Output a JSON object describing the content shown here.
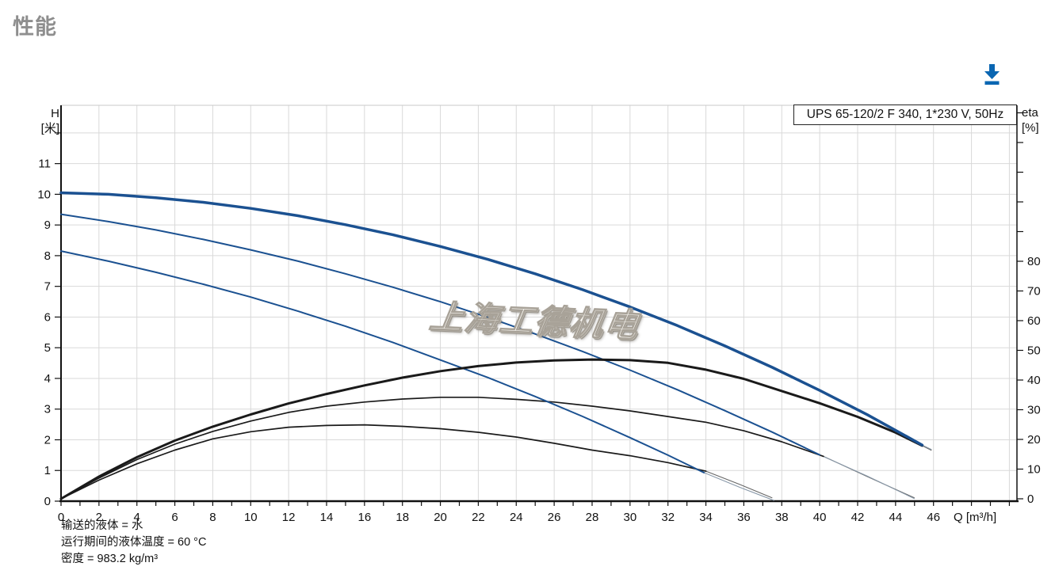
{
  "page_title": "性能",
  "toolbar": {
    "download_label": "下载",
    "download_icon_color": "#0a66b2"
  },
  "chart_data": {
    "type": "line",
    "model_label": "UPS 65-120/2 F 340, 1*230 V, 50Hz",
    "watermark": "上海工德机电",
    "notes": [
      "输送的液体 = 水",
      "运行期间的液体温度 = 60 °C",
      "密度 = 983.2 kg/m³"
    ],
    "x_axis": {
      "label": "Q [m³/h]",
      "min": 0,
      "max": 50.4,
      "minor_tick_step": 1,
      "labeled_ticks": [
        0,
        2,
        4,
        6,
        8,
        10,
        12,
        14,
        16,
        18,
        20,
        22,
        24,
        26,
        28,
        30,
        32,
        34,
        36,
        38,
        40,
        42,
        44,
        46
      ]
    },
    "y_left_axis": {
      "label_lines": [
        "H",
        "[米]"
      ],
      "min": 0,
      "max": 12.9,
      "tick_step": 1,
      "labeled_ticks": [
        0,
        1,
        2,
        3,
        4,
        5,
        6,
        7,
        8,
        9,
        10,
        11
      ]
    },
    "y_right_axis": {
      "label_lines": [
        "eta",
        "[%]"
      ],
      "min": 0,
      "max": 133,
      "tick_step": 10,
      "labeled_ticks": [
        0,
        10,
        20,
        30,
        40,
        50,
        60,
        70,
        80
      ]
    },
    "colors": {
      "curve_blue": "#1b5191",
      "curve_black": "#1a1a1a",
      "grid": "#d9d9d9",
      "axis": "#111111",
      "tail_blue": "#8898a8",
      "tail_black": "#666666"
    },
    "series": [
      {
        "name": "eta-speed1",
        "axis": "eta",
        "color": "curve_black",
        "width": 1.7,
        "points": [
          [
            0,
            0
          ],
          [
            2,
            6.3
          ],
          [
            4,
            11.8
          ],
          [
            6,
            16.4
          ],
          [
            8,
            20.2
          ],
          [
            10,
            22.6
          ],
          [
            12,
            24.1
          ],
          [
            14,
            24.7
          ],
          [
            16,
            24.9
          ],
          [
            18,
            24.4
          ],
          [
            20,
            23.6
          ],
          [
            22,
            22.4
          ],
          [
            24,
            20.8
          ],
          [
            26,
            18.7
          ],
          [
            28,
            16.4
          ],
          [
            30,
            14.5
          ],
          [
            32,
            12.2
          ],
          [
            34,
            9.3
          ]
        ],
        "tail": [
          [
            34,
            9.3
          ],
          [
            35.8,
            4.8
          ],
          [
            37.5,
            0.3
          ]
        ]
      },
      {
        "name": "eta-speed2",
        "axis": "eta",
        "color": "curve_black",
        "width": 1.7,
        "points": [
          [
            0,
            0
          ],
          [
            2,
            7
          ],
          [
            4,
            13.2
          ],
          [
            6,
            18.4
          ],
          [
            8,
            22.7
          ],
          [
            10,
            26.2
          ],
          [
            12,
            29.1
          ],
          [
            14,
            31.2
          ],
          [
            16,
            32.6
          ],
          [
            18,
            33.6
          ],
          [
            20,
            34.2
          ],
          [
            22,
            34.2
          ],
          [
            24,
            33.5
          ],
          [
            26,
            32.6
          ],
          [
            28,
            31.2
          ],
          [
            30,
            29.6
          ],
          [
            32,
            27.7
          ],
          [
            34,
            25.8
          ],
          [
            36,
            22.9
          ],
          [
            38,
            19.2
          ],
          [
            40.2,
            14.3
          ]
        ],
        "tail": [
          [
            40.2,
            14.3
          ],
          [
            42.5,
            7.5
          ],
          [
            45,
            0.3
          ]
        ]
      },
      {
        "name": "hq-speed1",
        "axis": "H",
        "color": "curve_blue",
        "width": 2,
        "points": [
          [
            0,
            8.15
          ],
          [
            2.5,
            7.82
          ],
          [
            5,
            7.46
          ],
          [
            7.5,
            7.07
          ],
          [
            10,
            6.65
          ],
          [
            12.5,
            6.19
          ],
          [
            15,
            5.7
          ],
          [
            17.5,
            5.17
          ],
          [
            20,
            4.6
          ],
          [
            22.5,
            4.03
          ],
          [
            25,
            3.41
          ],
          [
            27.5,
            2.76
          ],
          [
            30,
            2.07
          ],
          [
            32,
            1.5
          ],
          [
            33.9,
            0.93
          ]
        ],
        "tail": [
          [
            33.9,
            0.93
          ],
          [
            35.8,
            0.45
          ],
          [
            37.6,
            0.02
          ]
        ]
      },
      {
        "name": "hq-speed2",
        "axis": "H",
        "color": "curve_blue",
        "width": 2,
        "points": [
          [
            0,
            9.35
          ],
          [
            2.5,
            9.11
          ],
          [
            5,
            8.84
          ],
          [
            7.5,
            8.53
          ],
          [
            10,
            8.19
          ],
          [
            12.5,
            7.82
          ],
          [
            15,
            7.41
          ],
          [
            17.5,
            6.97
          ],
          [
            20,
            6.5
          ],
          [
            22.5,
            5.99
          ],
          [
            25,
            5.45
          ],
          [
            27.5,
            4.88
          ],
          [
            30,
            4.27
          ],
          [
            32.5,
            3.63
          ],
          [
            35,
            2.95
          ],
          [
            37.5,
            2.25
          ],
          [
            40,
            1.51
          ]
        ],
        "tail": [
          [
            40,
            1.51
          ],
          [
            42.5,
            0.82
          ],
          [
            45,
            0.08
          ]
        ]
      },
      {
        "name": "eta-max",
        "axis": "eta",
        "color": "curve_black",
        "width": 3,
        "points": [
          [
            0,
            0
          ],
          [
            2,
            7.5
          ],
          [
            4,
            14
          ],
          [
            6,
            19.6
          ],
          [
            8,
            24.3
          ],
          [
            10,
            28.4
          ],
          [
            12,
            32.1
          ],
          [
            14,
            35.3
          ],
          [
            16,
            38.2
          ],
          [
            18,
            40.8
          ],
          [
            20,
            43
          ],
          [
            22,
            44.7
          ],
          [
            24,
            45.9
          ],
          [
            26,
            46.6
          ],
          [
            28,
            46.9
          ],
          [
            30,
            46.7
          ],
          [
            32,
            45.8
          ],
          [
            34,
            43.5
          ],
          [
            36,
            40.4
          ],
          [
            38,
            36.3
          ],
          [
            40,
            32.2
          ],
          [
            42,
            27.6
          ],
          [
            44,
            22.3
          ],
          [
            45.4,
            17.9
          ]
        ],
        "tail": [
          [
            45.4,
            17.9
          ],
          [
            45.9,
            16.3
          ]
        ]
      },
      {
        "name": "hq-max",
        "axis": "H",
        "color": "curve_blue",
        "width": 3.5,
        "points": [
          [
            0,
            10.05
          ],
          [
            2.5,
            10.0
          ],
          [
            5,
            9.89
          ],
          [
            7.5,
            9.74
          ],
          [
            10,
            9.54
          ],
          [
            12.5,
            9.3
          ],
          [
            15,
            9.01
          ],
          [
            17.5,
            8.68
          ],
          [
            20,
            8.3
          ],
          [
            22.5,
            7.88
          ],
          [
            25,
            7.41
          ],
          [
            27.5,
            6.89
          ],
          [
            30,
            6.33
          ],
          [
            32.5,
            5.72
          ],
          [
            35,
            5.06
          ],
          [
            37.5,
            4.36
          ],
          [
            40,
            3.61
          ],
          [
            42.5,
            2.82
          ],
          [
            45.4,
            1.83
          ]
        ],
        "tail": [
          [
            45.4,
            1.83
          ],
          [
            45.9,
            1.68
          ]
        ]
      }
    ]
  }
}
